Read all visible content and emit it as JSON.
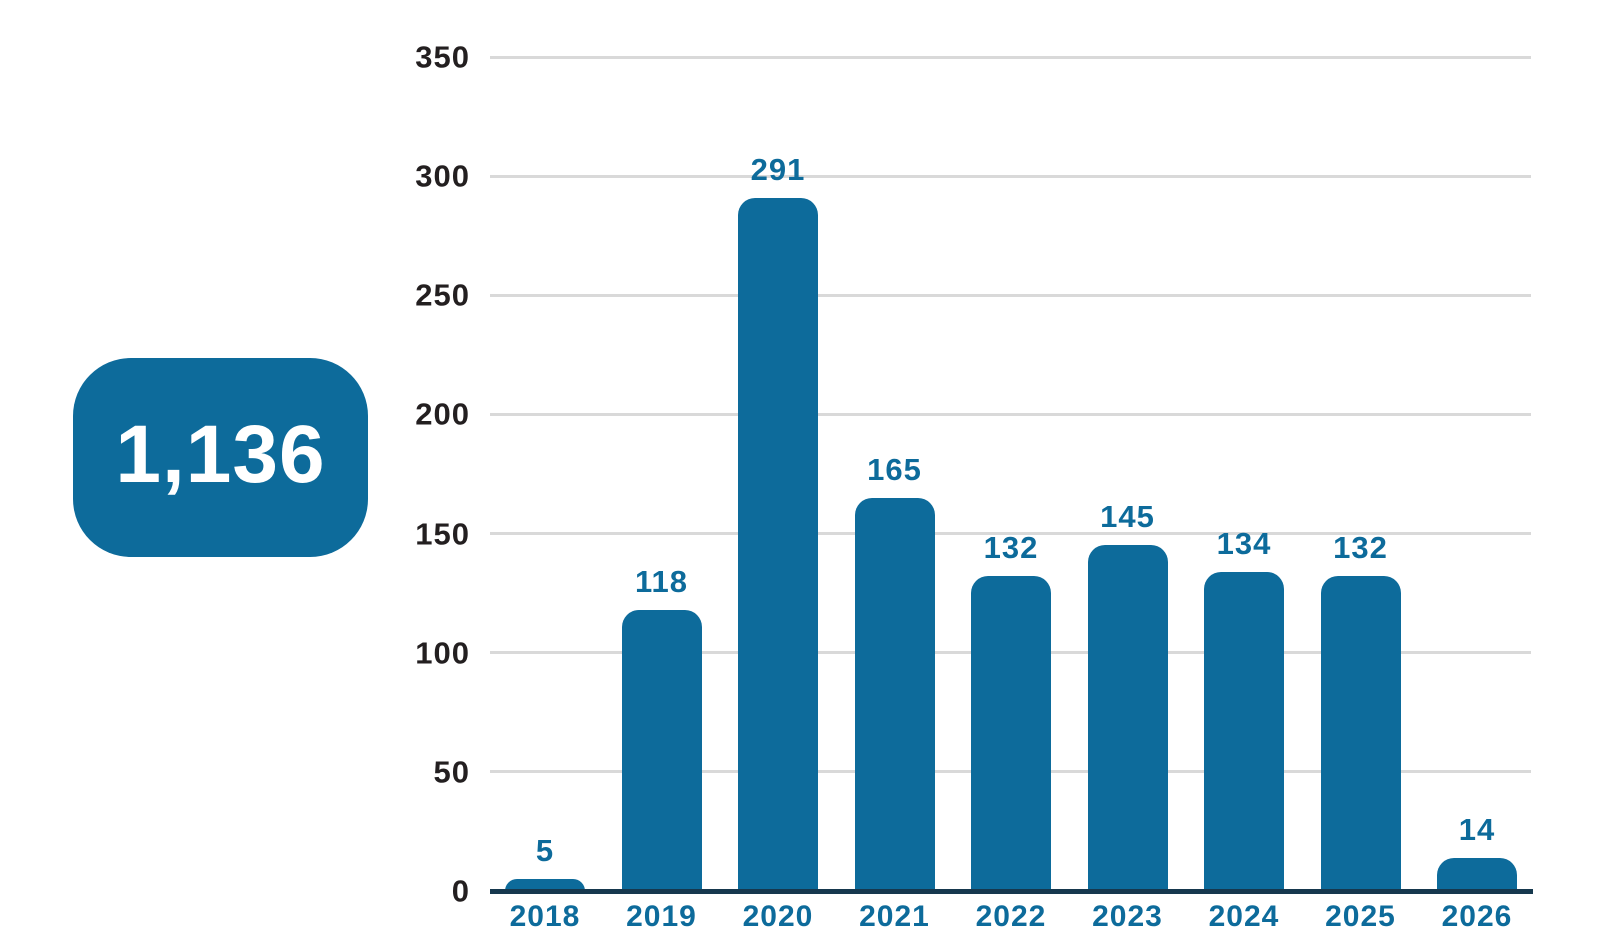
{
  "badge": {
    "total": "1,136"
  },
  "colors": {
    "bar": "#0d6b9b",
    "data_label": "#0d6b9b",
    "x_tick_label": "#0d6b9b",
    "y_tick_label": "#231f20",
    "gridline": "#d9d9d9",
    "axis_line": "#16384e",
    "badge_bg": "#0d6b9b",
    "badge_text": "#ffffff",
    "background": "#ffffff"
  },
  "chart_data": {
    "type": "bar",
    "title": "",
    "xlabel": "",
    "ylabel": "",
    "categories": [
      "2018",
      "2019",
      "2020",
      "2021",
      "2022",
      "2023",
      "2024",
      "2025",
      "2026"
    ],
    "values": [
      5,
      118,
      291,
      165,
      132,
      145,
      134,
      132,
      14
    ],
    "data_labels": [
      "5",
      "118",
      "291",
      "165",
      "132",
      "145",
      "134",
      "132",
      "14"
    ],
    "total_annotation": "1,136",
    "ylim": [
      0,
      350
    ],
    "yticks": [
      0,
      50,
      100,
      150,
      200,
      250,
      300,
      350
    ],
    "grid": "horizontal",
    "legend": "none",
    "bar_style": "rounded-top"
  }
}
